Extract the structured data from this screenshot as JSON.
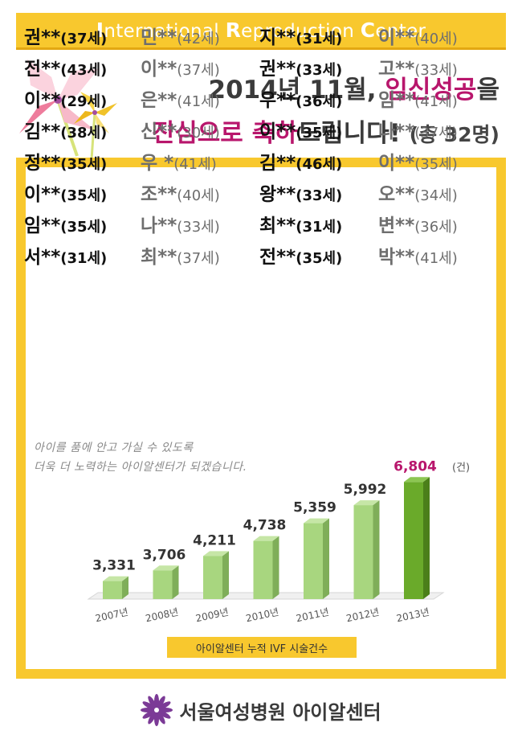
{
  "header": {
    "banner": {
      "i": "I",
      "nternational": "nternational ",
      "r": "R",
      "eproduction": "eproduction ",
      "c": "C",
      "enter": "enter"
    },
    "line1_prefix": "2014년 11월, ",
    "line1_accent": "임신성공",
    "line1_suffix": "을",
    "line2_accent_a": "진심으로 축하",
    "line2_rest": "드립니다! ",
    "line2_count": "(총 32명)"
  },
  "colors": {
    "yellow": "#f8c82e",
    "accent": "#b8166c",
    "bar_light": "#a5d47a",
    "bar_dark": "#5fa026"
  },
  "names": [
    [
      "권**",
      "(37세)",
      "민**",
      "(42세)",
      "지**",
      "(31세)",
      "이**",
      "(40세)"
    ],
    [
      "전**",
      "(43세)",
      "이**",
      "(37세)",
      "권**",
      "(33세)",
      "고**",
      "(33세)"
    ],
    [
      "이**",
      "(29세)",
      "은**",
      "(41세)",
      "우**",
      "(36세)",
      "임**",
      "(41세)"
    ],
    [
      "김**",
      "(38세)",
      "신**",
      "(30세)",
      "이**",
      "(35세)",
      "나**",
      "(37세)"
    ],
    [
      "정**",
      "(35세)",
      "우   *",
      "(41세)",
      "김**",
      "(46세)",
      "이**",
      "(35세)"
    ],
    [
      "이**",
      "(35세)",
      "조**",
      "(40세)",
      "왕**",
      "(33세)",
      "오**",
      "(34세)"
    ],
    [
      "임**",
      "(35세)",
      "나**",
      "(33세)",
      "최**",
      "(31세)",
      "변**",
      "(36세)"
    ],
    [
      "서**",
      "(31세)",
      "최**",
      "(37세)",
      "전**",
      "(35세)",
      "박**",
      "(41세)"
    ]
  ],
  "message": {
    "line1": "아이를 품에 안고 가실 수 있도록",
    "line2": "더욱 더 노력하는 아이알센터가 되겠습니다."
  },
  "chart_data": {
    "type": "bar",
    "categories": [
      "2007년",
      "2008년",
      "2009년",
      "2010년",
      "2011년",
      "2012년",
      "2013년"
    ],
    "values": [
      3331,
      3706,
      4211,
      4738,
      5359,
      5992,
      6804
    ],
    "value_labels": [
      "3,331",
      "3,706",
      "4,211",
      "4,738",
      "5,359",
      "5,992",
      "6,804"
    ],
    "unit": "(건)",
    "caption": "아이알센터 누적 IVF 시술건수",
    "highlight_last": true
  },
  "footer": {
    "name": "서울여성병원 아이알센터",
    "icon": "purple-flower-logo"
  }
}
